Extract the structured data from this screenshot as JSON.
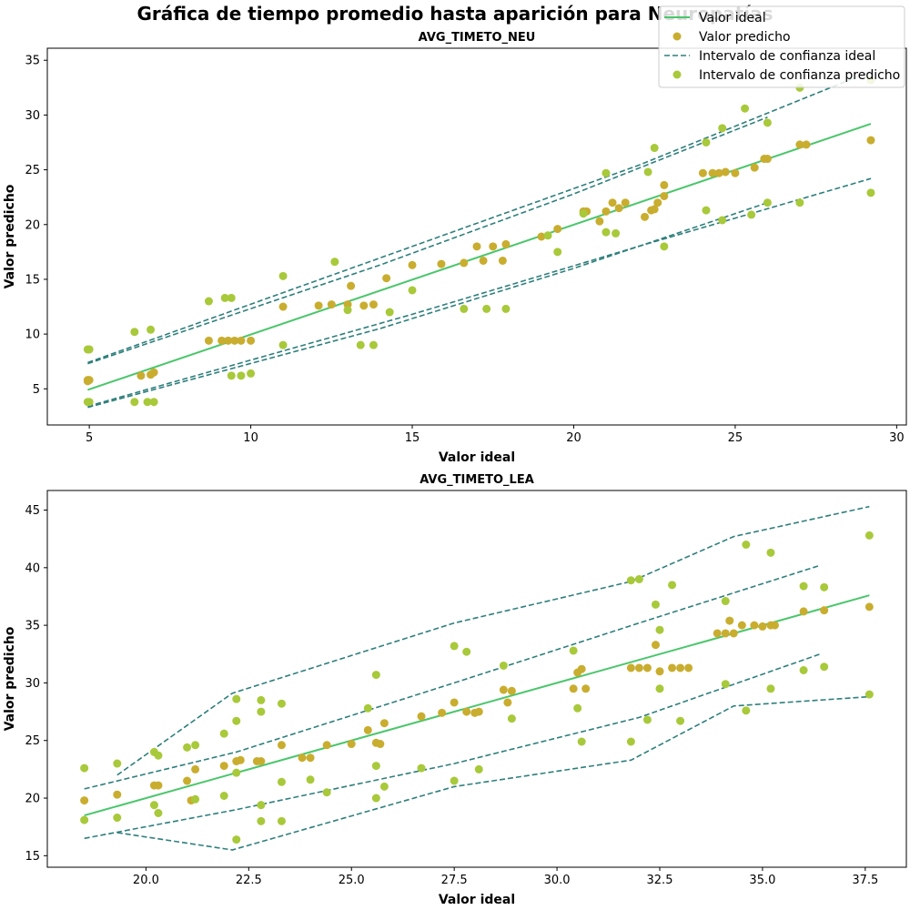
{
  "figure": {
    "suptitle": "Gráfica de tiempo promedio hasta aparición para Neuropatías",
    "legend": {
      "placement": "top-right",
      "entries": [
        "Valor ideal",
        "Valor predicho",
        "Intervalo de confianza ideal",
        "Intervalo de confianza predicho"
      ]
    }
  },
  "colors": {
    "ideal_line": "#4ac66b",
    "predicted": "#c9ad2f",
    "ci_ideal": "#2e7f7c",
    "ci_predicted": "#a8c93a"
  },
  "chart_data": [
    {
      "type": "scatter",
      "title": "AVG_TIMETO_NEU",
      "xlabel": "Valor ideal",
      "ylabel": "Valor predicho",
      "xlim": [
        3.7,
        30.3
      ],
      "ylim": [
        1.7,
        36.1
      ],
      "xticks": [
        5,
        10,
        15,
        20,
        25,
        30
      ],
      "yticks": [
        5,
        10,
        15,
        20,
        25,
        30,
        35
      ],
      "ideal_line": [
        [
          4.95,
          4.9
        ],
        [
          29.2,
          29.2
        ]
      ],
      "ci_ideal_upper": [
        [
          4.95,
          7.3
        ],
        [
          14.0,
          16.3
        ],
        [
          20.0,
          22.8
        ],
        [
          26.0,
          29.8
        ]
      ],
      "ci_ideal_lower": [
        [
          4.95,
          3.3
        ],
        [
          14.0,
          10.5
        ],
        [
          20.0,
          16.0
        ],
        [
          26.0,
          22.0
        ]
      ],
      "ci_predicted_upper": [
        [
          4.95,
          7.4
        ],
        [
          15.0,
          18.0
        ],
        [
          22.0,
          25.4
        ],
        [
          29.2,
          34.0
        ]
      ],
      "ci_predicted_lower": [
        [
          4.95,
          3.4
        ],
        [
          15.0,
          11.8
        ],
        [
          22.0,
          18.0
        ],
        [
          29.2,
          24.2
        ]
      ],
      "predicted_points": [
        [
          4.95,
          5.8
        ],
        [
          4.95,
          5.7
        ],
        [
          5.0,
          5.8
        ],
        [
          6.6,
          6.2
        ],
        [
          6.9,
          6.3
        ],
        [
          7.0,
          6.5
        ],
        [
          8.7,
          9.4
        ],
        [
          9.1,
          9.4
        ],
        [
          9.3,
          9.4
        ],
        [
          9.5,
          9.4
        ],
        [
          9.7,
          9.4
        ],
        [
          10.0,
          9.4
        ],
        [
          11.0,
          12.5
        ],
        [
          12.1,
          12.6
        ],
        [
          12.5,
          12.7
        ],
        [
          13.0,
          12.7
        ],
        [
          13.1,
          14.4
        ],
        [
          13.5,
          12.6
        ],
        [
          13.8,
          12.7
        ],
        [
          14.2,
          15.1
        ],
        [
          15.0,
          16.3
        ],
        [
          15.9,
          16.4
        ],
        [
          16.6,
          16.5
        ],
        [
          17.0,
          18.0
        ],
        [
          17.2,
          16.7
        ],
        [
          17.5,
          18.0
        ],
        [
          17.9,
          18.2
        ],
        [
          17.8,
          16.7
        ],
        [
          19.0,
          18.9
        ],
        [
          19.5,
          19.6
        ],
        [
          20.3,
          21.2
        ],
        [
          20.4,
          21.2
        ],
        [
          20.8,
          20.3
        ],
        [
          21.0,
          21.2
        ],
        [
          21.2,
          22.0
        ],
        [
          21.4,
          21.5
        ],
        [
          21.6,
          22.0
        ],
        [
          22.2,
          20.7
        ],
        [
          22.4,
          21.3
        ],
        [
          22.5,
          21.4
        ],
        [
          22.8,
          23.6
        ],
        [
          22.6,
          22.0
        ],
        [
          22.8,
          22.6
        ],
        [
          24.0,
          24.7
        ],
        [
          24.3,
          24.7
        ],
        [
          24.5,
          24.7
        ],
        [
          24.7,
          24.8
        ],
        [
          25.0,
          24.7
        ],
        [
          25.6,
          25.2
        ],
        [
          25.9,
          26.0
        ],
        [
          26.0,
          26.0
        ],
        [
          27.0,
          27.3
        ],
        [
          27.2,
          27.3
        ],
        [
          29.2,
          27.7
        ]
      ],
      "ci_points": [
        [
          4.95,
          8.6
        ],
        [
          5.0,
          8.6
        ],
        [
          4.95,
          3.8
        ],
        [
          5.0,
          3.8
        ],
        [
          6.4,
          10.2
        ],
        [
          6.9,
          10.4
        ],
        [
          6.4,
          3.8
        ],
        [
          6.8,
          3.8
        ],
        [
          7.0,
          3.8
        ],
        [
          8.7,
          13.0
        ],
        [
          9.2,
          13.3
        ],
        [
          9.4,
          13.3
        ],
        [
          9.4,
          6.2
        ],
        [
          9.7,
          6.2
        ],
        [
          10.0,
          6.4
        ],
        [
          11.0,
          15.3
        ],
        [
          11.0,
          9.0
        ],
        [
          12.6,
          16.6
        ],
        [
          13.0,
          12.2
        ],
        [
          13.4,
          9.0
        ],
        [
          13.8,
          9.0
        ],
        [
          14.3,
          12.0
        ],
        [
          15.0,
          14.0
        ],
        [
          16.6,
          12.3
        ],
        [
          17.3,
          12.3
        ],
        [
          17.9,
          12.3
        ],
        [
          19.2,
          19.0
        ],
        [
          19.5,
          17.5
        ],
        [
          20.3,
          21.0
        ],
        [
          21.0,
          19.3
        ],
        [
          21.0,
          24.7
        ],
        [
          21.3,
          19.2
        ],
        [
          22.3,
          24.8
        ],
        [
          22.5,
          27.0
        ],
        [
          22.8,
          18.0
        ],
        [
          24.1,
          27.5
        ],
        [
          24.1,
          21.3
        ],
        [
          24.6,
          28.8
        ],
        [
          24.6,
          20.4
        ],
        [
          25.3,
          30.6
        ],
        [
          25.5,
          20.9
        ],
        [
          26.0,
          29.3
        ],
        [
          26.0,
          22.0
        ],
        [
          27.0,
          32.5
        ],
        [
          27.0,
          22.0
        ],
        [
          29.2,
          33.2
        ],
        [
          29.2,
          22.9
        ]
      ]
    },
    {
      "type": "scatter",
      "title": "AVG_TIMETO_LEA",
      "xlabel": "Valor ideal",
      "ylabel": "Valor predicho",
      "xlim": [
        17.6,
        38.5
      ],
      "ylim": [
        14.0,
        46.7
      ],
      "xticks": [
        20.0,
        22.5,
        25.0,
        27.5,
        30.0,
        32.5,
        35.0,
        37.5
      ],
      "yticks": [
        15,
        20,
        25,
        30,
        35,
        40,
        45
      ],
      "ideal_line": [
        [
          18.5,
          18.5
        ],
        [
          37.6,
          37.6
        ]
      ],
      "ci_ideal_upper": [
        [
          18.5,
          20.8
        ],
        [
          22.2,
          24.0
        ],
        [
          27.5,
          30.0
        ],
        [
          32.0,
          35.2
        ],
        [
          36.4,
          40.2
        ]
      ],
      "ci_ideal_lower": [
        [
          18.5,
          16.5
        ],
        [
          22.2,
          19.0
        ],
        [
          27.5,
          23.0
        ],
        [
          32.0,
          27.0
        ],
        [
          36.4,
          32.5
        ]
      ],
      "ci_predicted_upper": [
        [
          19.3,
          22.0
        ],
        [
          22.1,
          29.1
        ],
        [
          27.5,
          35.2
        ],
        [
          31.8,
          38.8
        ],
        [
          34.3,
          42.7
        ],
        [
          37.6,
          45.3
        ]
      ],
      "ci_predicted_lower": [
        [
          19.3,
          17.0
        ],
        [
          22.1,
          15.5
        ],
        [
          27.5,
          21.0
        ],
        [
          31.8,
          23.3
        ],
        [
          34.3,
          28.0
        ],
        [
          37.6,
          28.8
        ]
      ],
      "predicted_points": [
        [
          18.5,
          19.8
        ],
        [
          19.3,
          20.3
        ],
        [
          20.2,
          21.1
        ],
        [
          20.3,
          21.1
        ],
        [
          21.0,
          21.5
        ],
        [
          21.1,
          19.8
        ],
        [
          21.2,
          22.5
        ],
        [
          21.9,
          22.8
        ],
        [
          22.2,
          23.2
        ],
        [
          22.3,
          23.3
        ],
        [
          22.7,
          23.2
        ],
        [
          22.8,
          23.2
        ],
        [
          23.3,
          24.6
        ],
        [
          23.8,
          23.5
        ],
        [
          24.0,
          23.5
        ],
        [
          24.4,
          24.6
        ],
        [
          25.0,
          24.7
        ],
        [
          25.4,
          25.9
        ],
        [
          25.6,
          24.8
        ],
        [
          25.8,
          26.5
        ],
        [
          25.7,
          24.7
        ],
        [
          26.7,
          27.1
        ],
        [
          27.2,
          27.4
        ],
        [
          27.5,
          28.3
        ],
        [
          27.8,
          27.5
        ],
        [
          28.0,
          27.4
        ],
        [
          28.1,
          27.5
        ],
        [
          28.7,
          29.4
        ],
        [
          28.8,
          28.3
        ],
        [
          28.9,
          29.3
        ],
        [
          30.4,
          29.5
        ],
        [
          30.5,
          30.9
        ],
        [
          30.6,
          31.2
        ],
        [
          30.7,
          29.5
        ],
        [
          31.8,
          31.3
        ],
        [
          32.0,
          31.3
        ],
        [
          32.2,
          31.3
        ],
        [
          32.4,
          33.3
        ],
        [
          32.5,
          31.0
        ],
        [
          32.8,
          31.3
        ],
        [
          33.0,
          31.3
        ],
        [
          33.2,
          31.3
        ],
        [
          33.9,
          34.3
        ],
        [
          34.1,
          34.3
        ],
        [
          34.2,
          35.4
        ],
        [
          34.3,
          34.3
        ],
        [
          34.5,
          35.0
        ],
        [
          34.8,
          35.0
        ],
        [
          35.0,
          34.9
        ],
        [
          35.2,
          35.0
        ],
        [
          35.3,
          35.0
        ],
        [
          36.0,
          36.2
        ],
        [
          36.5,
          36.3
        ],
        [
          37.6,
          36.6
        ]
      ],
      "ci_points": [
        [
          18.5,
          22.6
        ],
        [
          18.5,
          18.1
        ],
        [
          19.3,
          23.0
        ],
        [
          19.3,
          18.3
        ],
        [
          20.2,
          24.0
        ],
        [
          20.2,
          19.4
        ],
        [
          20.3,
          23.7
        ],
        [
          20.3,
          18.7
        ],
        [
          21.0,
          24.4
        ],
        [
          21.2,
          24.6
        ],
        [
          21.2,
          19.9
        ],
        [
          21.9,
          25.6
        ],
        [
          21.9,
          20.2
        ],
        [
          22.2,
          26.7
        ],
        [
          22.2,
          28.6
        ],
        [
          22.2,
          22.2
        ],
        [
          22.2,
          16.4
        ],
        [
          22.8,
          28.5
        ],
        [
          22.8,
          27.5
        ],
        [
          22.8,
          18.0
        ],
        [
          22.8,
          19.4
        ],
        [
          23.3,
          28.2
        ],
        [
          23.3,
          21.4
        ],
        [
          23.3,
          18.0
        ],
        [
          24.0,
          21.6
        ],
        [
          24.4,
          20.5
        ],
        [
          25.4,
          27.8
        ],
        [
          25.6,
          30.7
        ],
        [
          25.6,
          22.8
        ],
        [
          25.6,
          20.0
        ],
        [
          25.8,
          21.0
        ],
        [
          26.7,
          22.6
        ],
        [
          27.5,
          33.2
        ],
        [
          27.5,
          21.5
        ],
        [
          27.8,
          32.7
        ],
        [
          28.1,
          22.5
        ],
        [
          28.7,
          31.5
        ],
        [
          28.9,
          26.9
        ],
        [
          30.4,
          32.8
        ],
        [
          30.5,
          27.8
        ],
        [
          30.6,
          24.9
        ],
        [
          31.8,
          38.9
        ],
        [
          31.8,
          24.9
        ],
        [
          32.0,
          39.0
        ],
        [
          32.2,
          26.8
        ],
        [
          32.4,
          36.8
        ],
        [
          32.5,
          34.6
        ],
        [
          32.5,
          29.5
        ],
        [
          32.8,
          38.5
        ],
        [
          33.0,
          26.7
        ],
        [
          34.1,
          37.1
        ],
        [
          34.1,
          29.9
        ],
        [
          34.6,
          42.0
        ],
        [
          34.6,
          27.6
        ],
        [
          35.2,
          41.3
        ],
        [
          35.2,
          29.5
        ],
        [
          36.0,
          31.1
        ],
        [
          36.0,
          38.4
        ],
        [
          36.5,
          38.3
        ],
        [
          36.5,
          31.4
        ],
        [
          37.6,
          42.8
        ],
        [
          37.6,
          29.0
        ]
      ]
    }
  ]
}
